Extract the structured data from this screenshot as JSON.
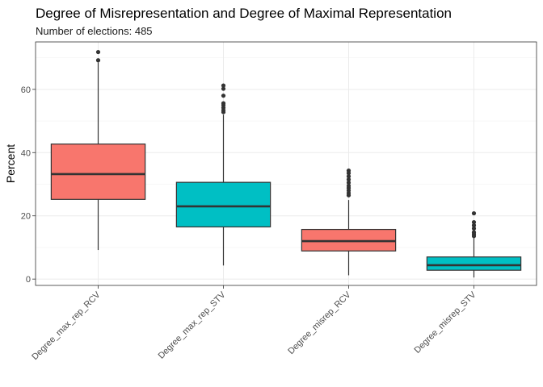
{
  "chart_data": {
    "type": "boxplot",
    "title": "Degree of Misrepresentation and Degree of Maximal Representation",
    "subtitle": "Number of elections: 485",
    "xlabel": "",
    "ylabel": "Percent",
    "ylim": [
      -2,
      75
    ],
    "yticks": [
      0,
      20,
      40,
      60
    ],
    "grid": true,
    "categories": [
      "Degree_max_rep_RCV",
      "Degree_max_rep_STV",
      "Degree_misrep_RCV",
      "Degree_misrep_STV"
    ],
    "boxes": [
      {
        "category": "Degree_max_rep_RCV",
        "min": 9.2,
        "q1": 25.2,
        "median": 33.2,
        "q3": 42.7,
        "max": 68.5,
        "outliers": [
          69.2,
          71.8
        ],
        "color": "#F8766D"
      },
      {
        "category": "Degree_max_rep_STV",
        "min": 4.3,
        "q1": 16.5,
        "median": 23.0,
        "q3": 30.6,
        "max": 52.0,
        "outliers": [
          52.8,
          53.4,
          54.2,
          55.0,
          55.6,
          58.0,
          60.2,
          61.2
        ],
        "color": "#00BFC4"
      },
      {
        "category": "Degree_misrep_RCV",
        "min": 1.2,
        "q1": 8.9,
        "median": 12.0,
        "q3": 15.7,
        "max": 25.0,
        "outliers": [
          26.5,
          27.2,
          28.0,
          28.8,
          29.5,
          30.5,
          31.5,
          32.5,
          33.5,
          34.3
        ],
        "color": "#F8766D"
      },
      {
        "category": "Degree_misrep_STV",
        "min": 0.5,
        "q1": 2.8,
        "median": 4.4,
        "q3": 7.0,
        "max": 13.0,
        "outliers": [
          13.6,
          14.2,
          14.8,
          16.0,
          17.0,
          18.0,
          20.8
        ],
        "color": "#00BFC4"
      }
    ]
  }
}
